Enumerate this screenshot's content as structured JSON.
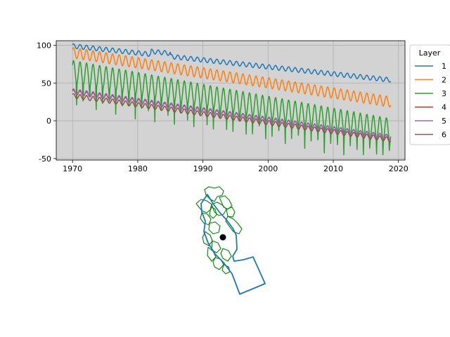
{
  "chart_data": [
    {
      "type": "line",
      "title": "",
      "xlabel": "",
      "ylabel": "",
      "xlim": [
        1967.5,
        2021.0
      ],
      "ylim": [
        -52,
        106
      ],
      "xticks": [
        1970,
        1980,
        1990,
        2000,
        2010,
        2020
      ],
      "yticks": [
        -50,
        0,
        50,
        100
      ],
      "xtick_labels": [
        "1970",
        "1980",
        "1990",
        "2000",
        "2010",
        "2020"
      ],
      "ytick_labels": [
        "-50",
        "0",
        "50",
        "100"
      ],
      "grid": true,
      "background": "#d3d3d3",
      "legend": {
        "title": "Layer",
        "placement": "outside-right"
      },
      "x_range": [
        1970.0,
        2018.8
      ],
      "series": [
        {
          "name": "1",
          "color": "#1f77b4",
          "start": 99,
          "end": 54,
          "amplitude": 6,
          "note_min": 45
        },
        {
          "name": "2",
          "color": "#ff7f0e",
          "start": 90,
          "end": 25,
          "amplitude": 14,
          "note_min": 18
        },
        {
          "name": "3",
          "color": "#2ca02c",
          "start": 65,
          "end": -12,
          "amplitude": 30,
          "note_min": -45
        },
        {
          "name": "4",
          "color": "#d62728",
          "start": 38,
          "end": -22,
          "amplitude": 6,
          "note_min": -35
        },
        {
          "name": "5",
          "color": "#9467bd",
          "start": 39,
          "end": -22,
          "amplitude": 7,
          "note_min": -35
        },
        {
          "name": "6",
          "color": "#8c564b",
          "start": 33,
          "end": -25,
          "amplitude": 6,
          "note_min": -35
        }
      ]
    },
    {
      "type": "map",
      "title": "",
      "layers": [
        {
          "name": "",
          "color": "#008000",
          "kind": "subbasin-outlines"
        },
        {
          "name": "",
          "color": "#1f77b4",
          "kind": "model-boundary"
        }
      ],
      "point": {
        "color": "#000000"
      }
    }
  ]
}
